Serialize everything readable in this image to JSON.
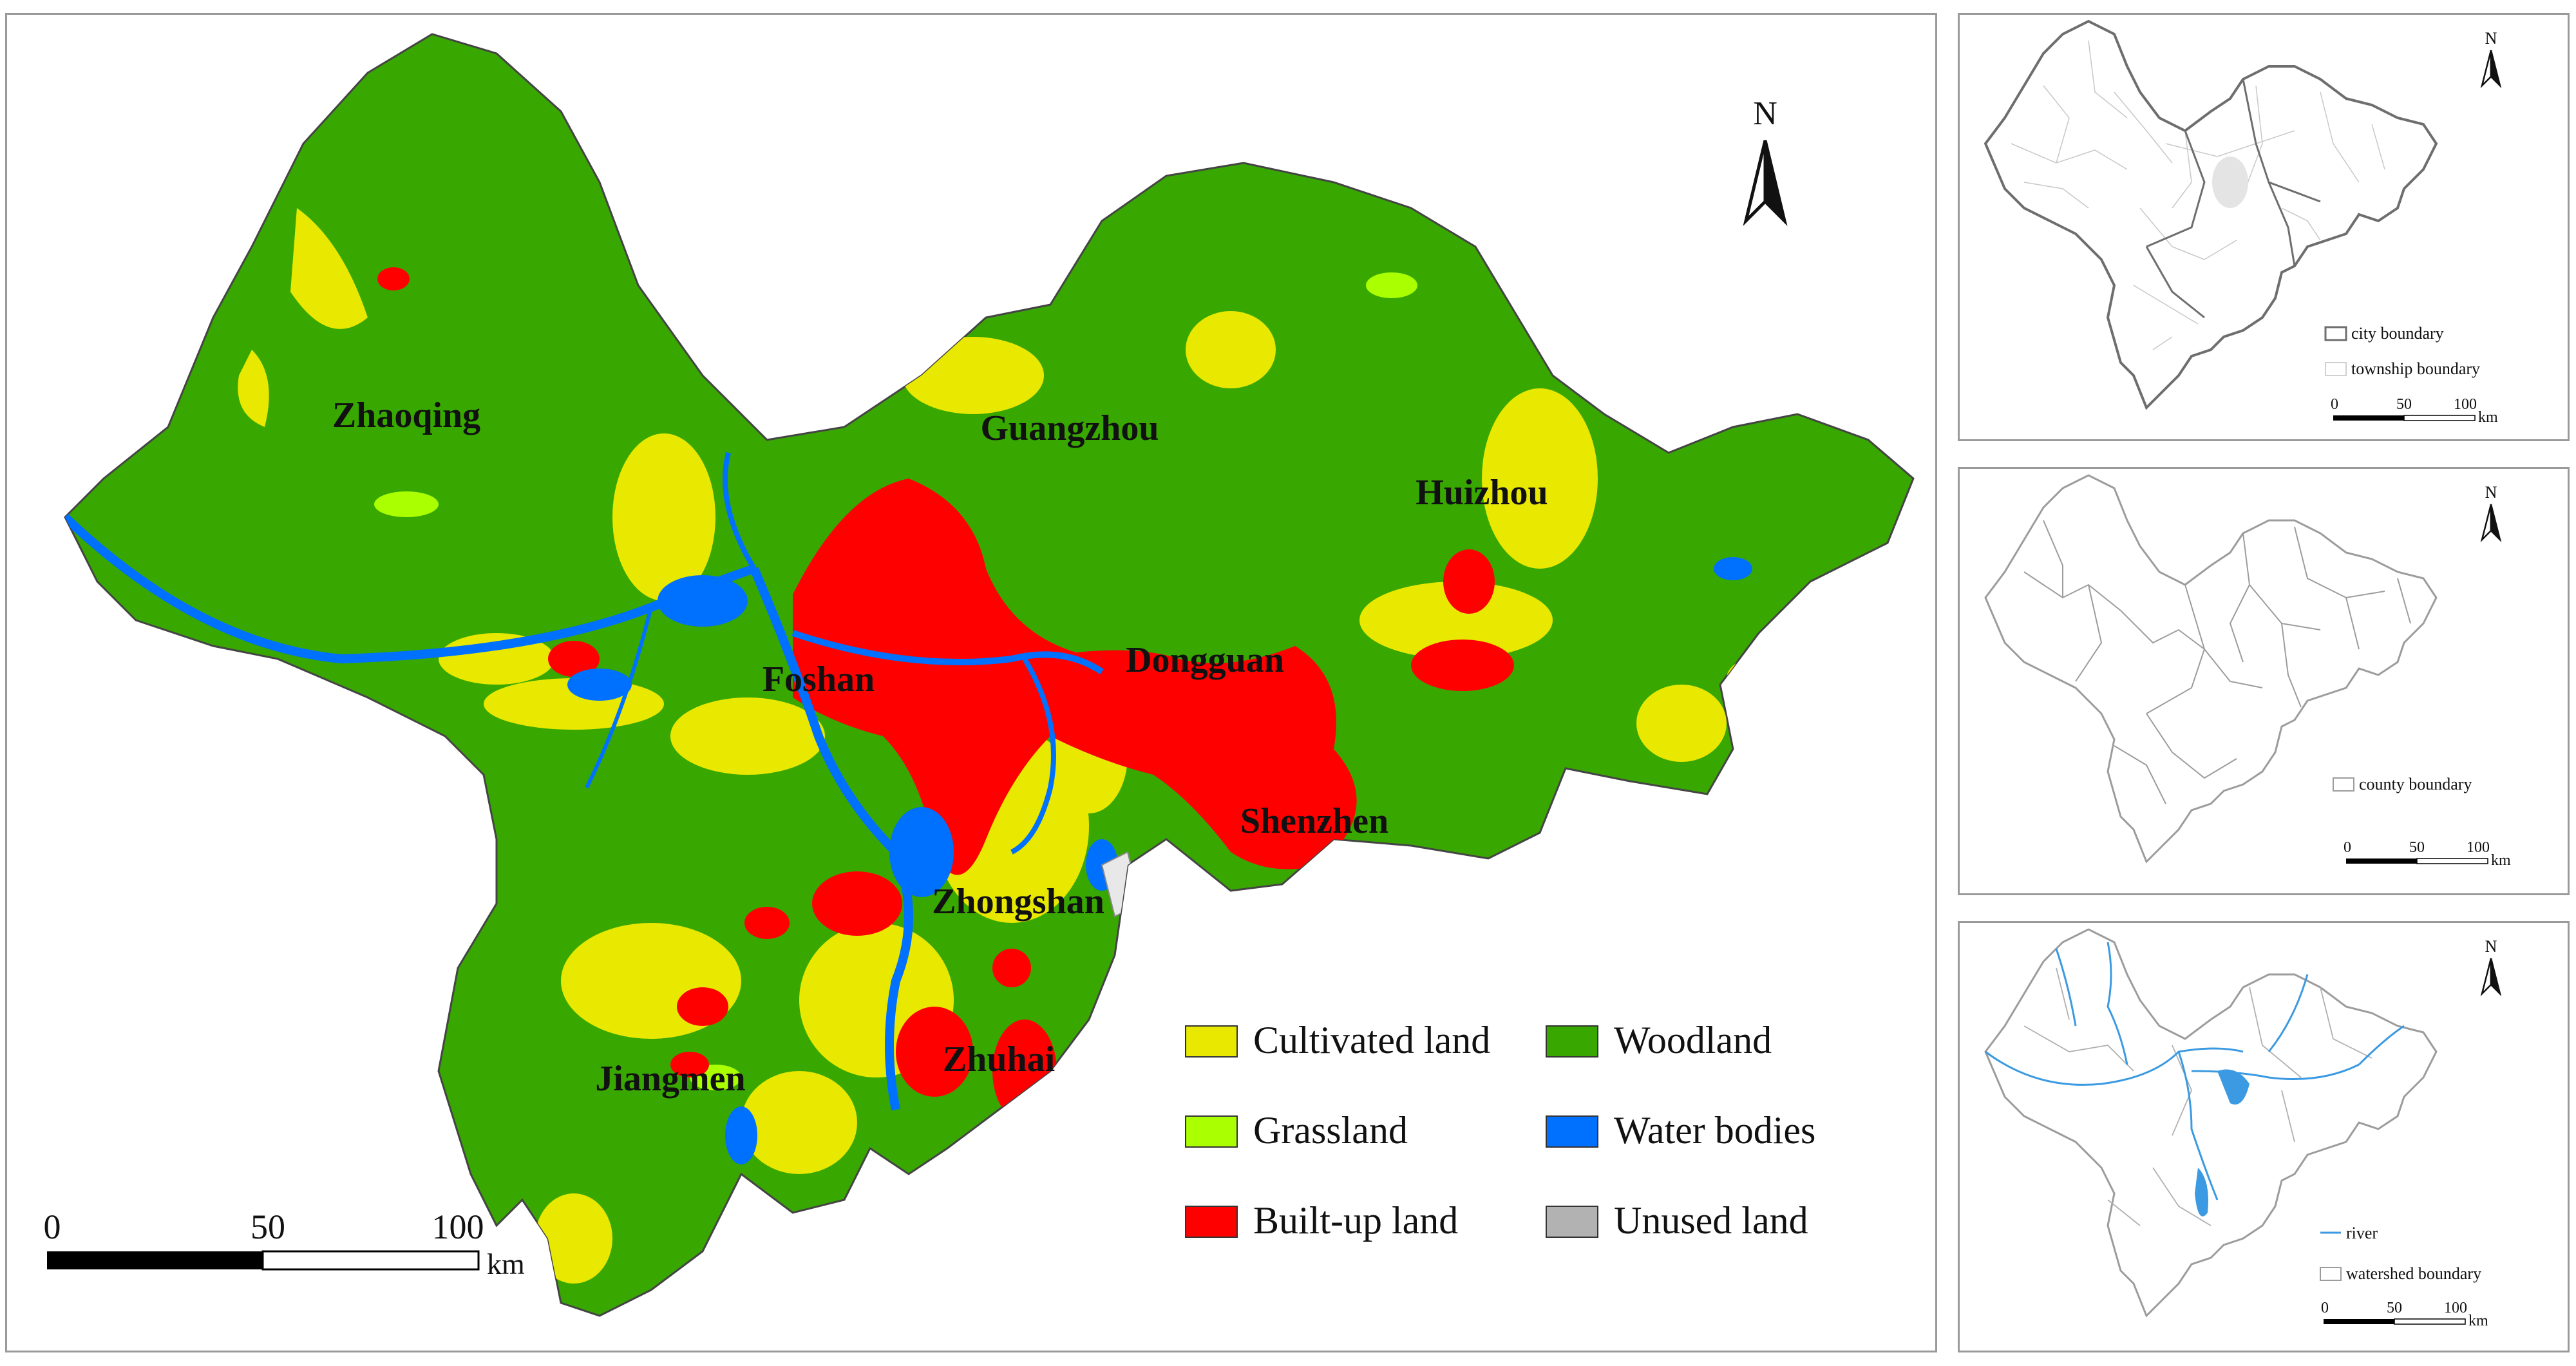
{
  "main_map": {
    "city_labels": {
      "zhaoqing": "Zhaoqing",
      "guangzhou": "Guangzhou",
      "huizhou": "Huizhou",
      "foshan": "Foshan",
      "dongguan": "Dongguan",
      "shenzhen": "Shenzhen",
      "zhongshan": "Zhongshan",
      "zhuhai": "Zhuhai",
      "jiangmen": "Jiangmen"
    },
    "north_label": "N",
    "scale": {
      "tick_0": "0",
      "tick_50": "50",
      "tick_100": "100",
      "unit": "km"
    },
    "legend": [
      {
        "label": "Cultivated land",
        "color": "#e8e800"
      },
      {
        "label": "Woodland",
        "color": "#38a800"
      },
      {
        "label": "Grassland",
        "color": "#aaff00"
      },
      {
        "label": "Water bodies",
        "color": "#0070ff"
      },
      {
        "label": "Built-up land",
        "color": "#ff0000"
      },
      {
        "label": "Unused land",
        "color": "#b2b2b2"
      }
    ]
  },
  "panel_city": {
    "north_label": "N",
    "legend": [
      {
        "label": "city boundary",
        "color": "#6e6e6e"
      },
      {
        "label": "township boundary",
        "color": "#d0d0d0"
      }
    ],
    "scale": {
      "tick_0": "0",
      "tick_50": "50",
      "tick_100": "100",
      "unit": "km"
    }
  },
  "panel_county": {
    "north_label": "N",
    "legend": [
      {
        "label": "county boundary",
        "color": "#9c9c9c"
      }
    ],
    "scale": {
      "tick_0": "0",
      "tick_50": "50",
      "tick_100": "100",
      "unit": "km"
    }
  },
  "panel_watershed": {
    "north_label": "N",
    "legend": [
      {
        "label": "river",
        "color": "#3b9ae1"
      },
      {
        "label": "watershed boundary",
        "color": "#9c9c9c"
      }
    ],
    "scale": {
      "tick_0": "0",
      "tick_50": "50",
      "tick_100": "100",
      "unit": "km"
    }
  }
}
